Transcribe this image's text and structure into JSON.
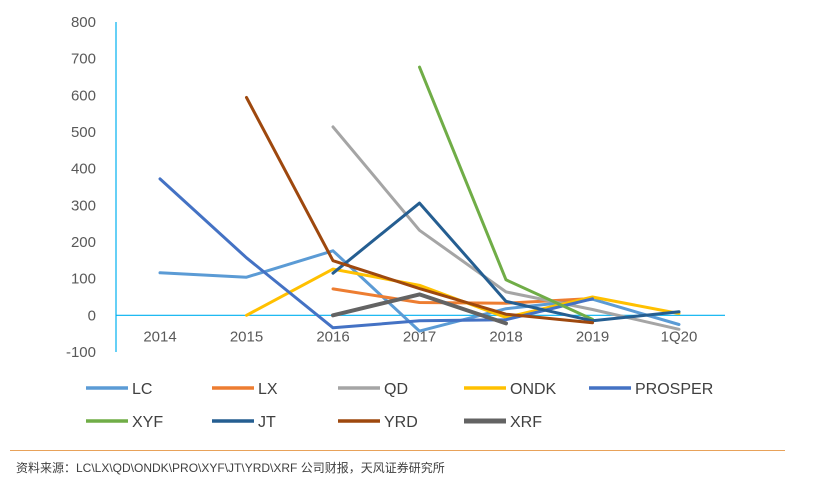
{
  "chart_data": {
    "type": "line",
    "categories": [
      "2014",
      "2015",
      "2016",
      "2017",
      "2018",
      "2019",
      "1Q20"
    ],
    "ylim": [
      -100,
      800
    ],
    "yticks": [
      800,
      700,
      600,
      500,
      400,
      300,
      200,
      100,
      0,
      -100
    ],
    "ytick_labels": [
      "800",
      "700",
      "600",
      "500",
      "400",
      "300",
      "200",
      "100",
      "0",
      "-100"
    ],
    "grid": false,
    "legend_position": "bottom",
    "series": [
      {
        "name": "LC",
        "color": "#5b9bd5",
        "values": [
          116,
          104,
          176,
          -43,
          18,
          44,
          -25
        ]
      },
      {
        "name": "LX",
        "color": "#ed7d31",
        "values": [
          null,
          null,
          72,
          35,
          33,
          46,
          null
        ]
      },
      {
        "name": "QD",
        "color": "#a5a5a5",
        "values": [
          null,
          null,
          514,
          232,
          64,
          16,
          -38
        ]
      },
      {
        "name": "ONDK",
        "color": "#ffc000",
        "values": [
          null,
          0,
          126,
          82,
          -6,
          50,
          5
        ]
      },
      {
        "name": "PROSPER",
        "color": "#4472c4",
        "values": [
          372,
          157,
          -34,
          -15,
          -12,
          45,
          null
        ]
      },
      {
        "name": "XYF",
        "color": "#70ad47",
        "values": [
          null,
          null,
          null,
          677,
          97,
          -11,
          null
        ]
      },
      {
        "name": "JT",
        "color": "#255e91",
        "values": [
          null,
          null,
          115,
          306,
          38,
          -15,
          10
        ]
      },
      {
        "name": "YRD",
        "color": "#9e480e",
        "values": [
          null,
          594,
          149,
          73,
          3,
          -20,
          null
        ]
      },
      {
        "name": "XRF",
        "color": "#636363",
        "values": [
          null,
          null,
          0,
          57,
          -22,
          null,
          null
        ]
      }
    ]
  },
  "source": "资料来源：LC\\LX\\QD\\ONDK\\PRO\\XYF\\JT\\YRD\\XRF 公司财报，天风证券研究所"
}
